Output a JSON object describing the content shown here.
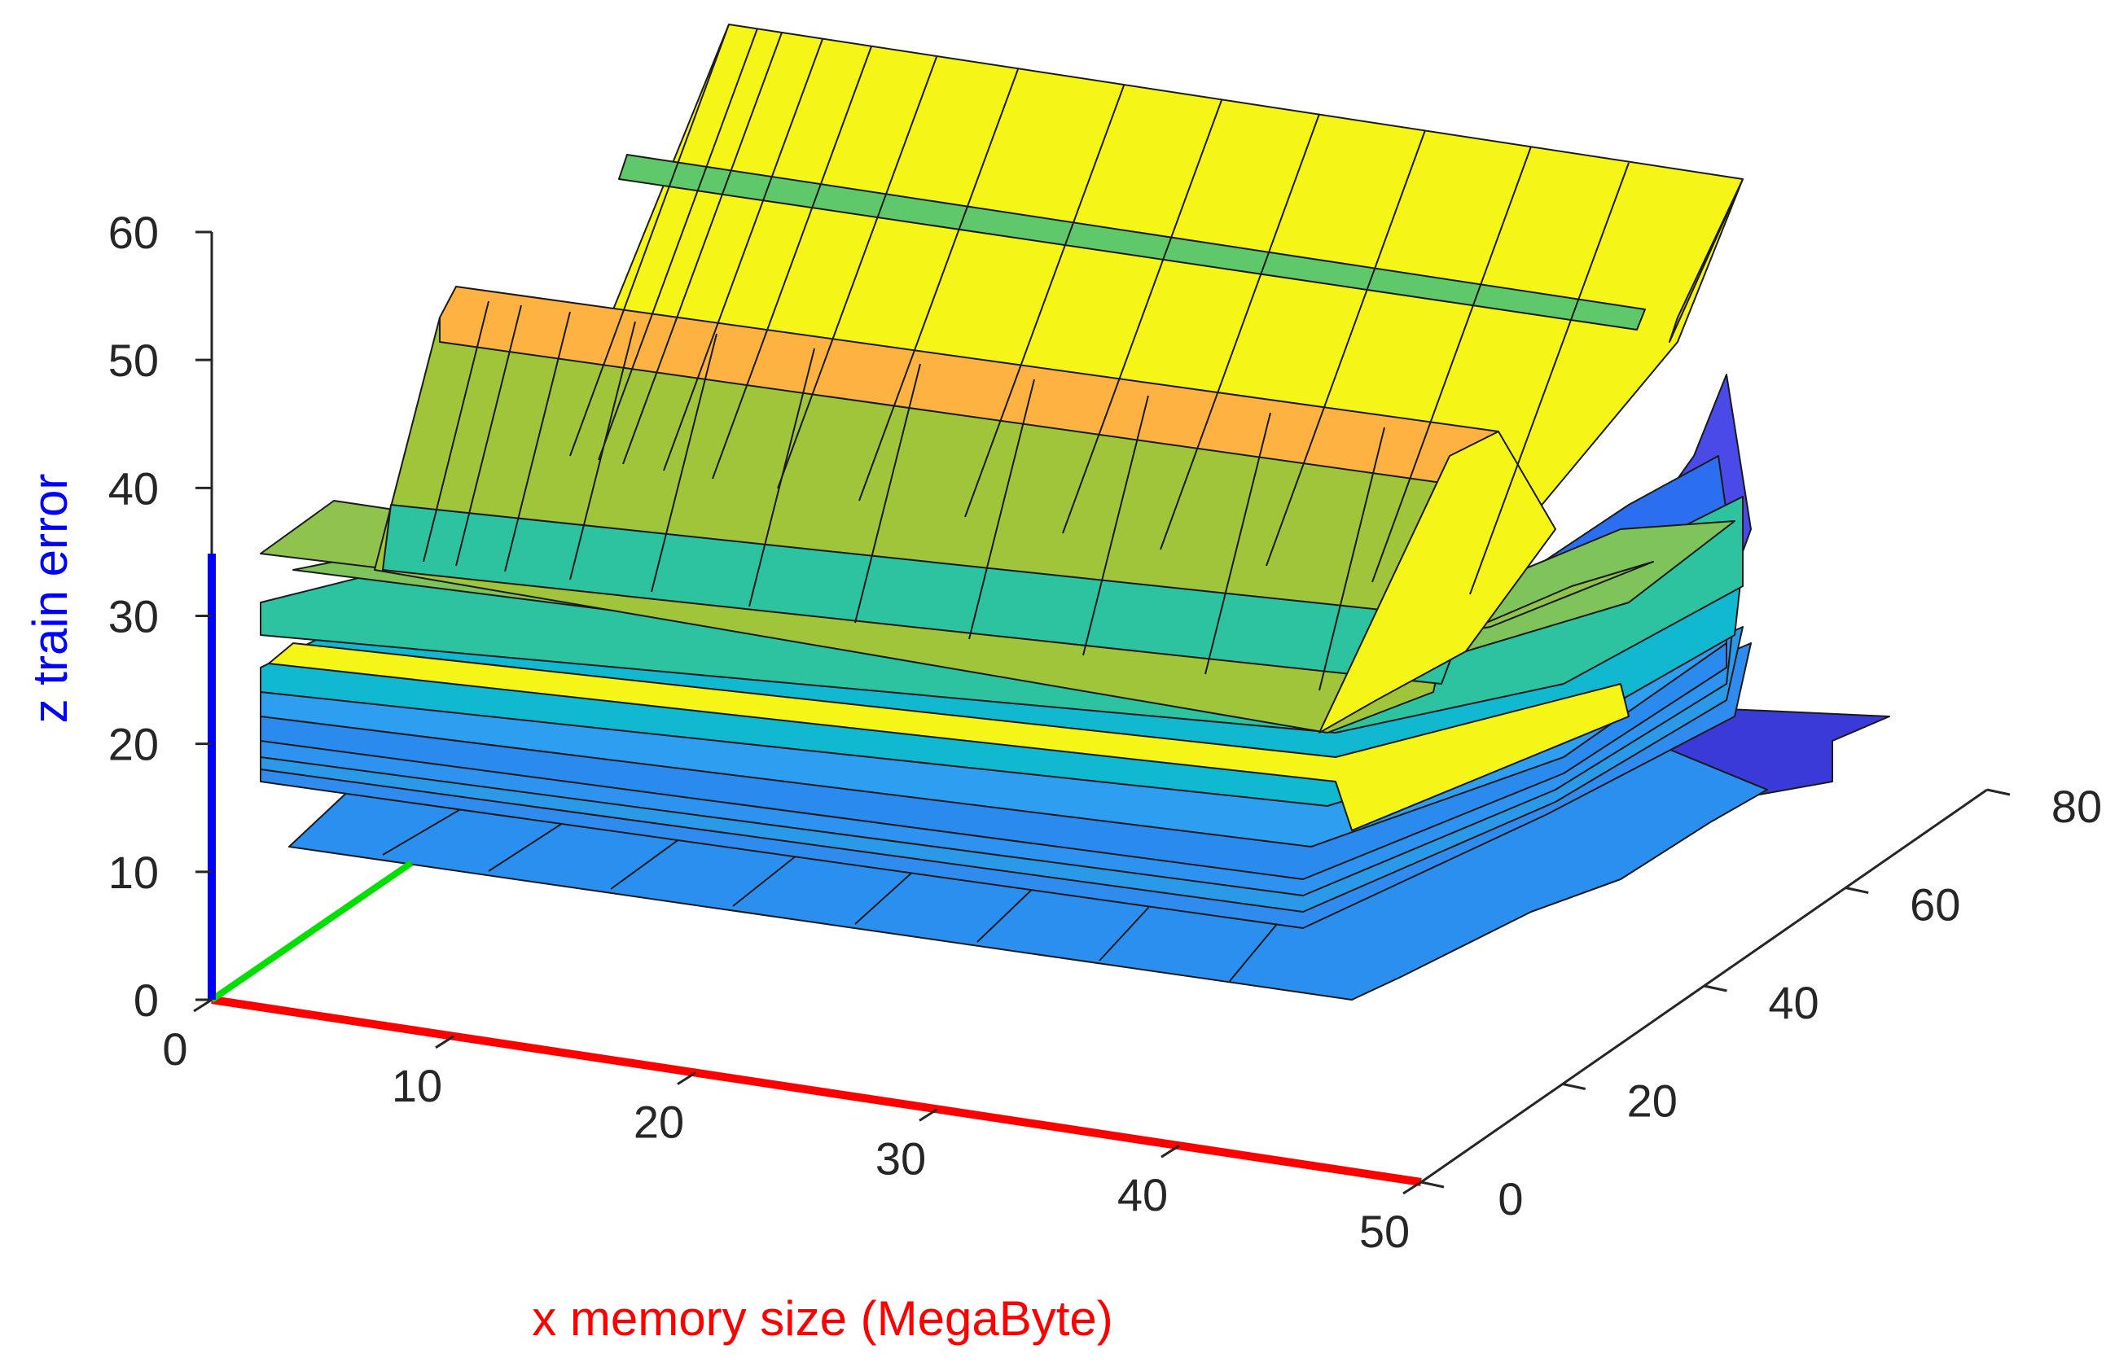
{
  "chart_data": {
    "type": "surface",
    "title": "",
    "xlabel": "x memory size (MegaByte)",
    "ylabel": "",
    "zlabel": "z train error",
    "xlim": [
      0,
      50
    ],
    "ylim": [
      0,
      80
    ],
    "zlim": [
      0,
      60
    ],
    "x_ticks": [
      "0",
      "10",
      "20",
      "30",
      "40",
      "50"
    ],
    "y_ticks": [
      "0",
      "20",
      "40",
      "60",
      "80"
    ],
    "z_ticks": [
      "0",
      "10",
      "20",
      "30",
      "40",
      "50",
      "60"
    ],
    "colors": {
      "x_axis": "#ff0000",
      "y_axis": "#00e000",
      "z_axis": "#0000ff",
      "ridge_yellow": "#f5f518",
      "ridge_green": "#5fc86a",
      "ridge_orange": "#fdb241",
      "olive": "#a0c43a",
      "teal": "#2dc2a0",
      "cyan": "#10b8d0",
      "blue": "#2b8ff0",
      "dark_blue": "#3a3ad8"
    },
    "grid": false,
    "surface": {
      "description": "stacked error surfaces rising with the third input; sheets at approximate constant z levels",
      "layers": [
        {
          "name": "",
          "z": 11,
          "color": "blue"
        },
        {
          "name": "",
          "z": 16,
          "color": "blue"
        },
        {
          "name": "",
          "z": 17,
          "color": "blue"
        },
        {
          "name": "",
          "z": 18,
          "color": "blue"
        },
        {
          "name": "",
          "z": 19,
          "color": "blue"
        },
        {
          "name": "",
          "z": 20,
          "color": "blue"
        },
        {
          "name": "",
          "z": 23,
          "color": "cyan"
        },
        {
          "name": "",
          "z": 26,
          "color": "teal"
        },
        {
          "name": "",
          "z": 29,
          "color": "olive"
        },
        {
          "name": "",
          "z": 33,
          "color": "olive"
        },
        {
          "name": "",
          "z": 52,
          "color": "ridge_orange"
        },
        {
          "name": "",
          "z": 64,
          "color": "ridge_yellow"
        }
      ]
    }
  }
}
